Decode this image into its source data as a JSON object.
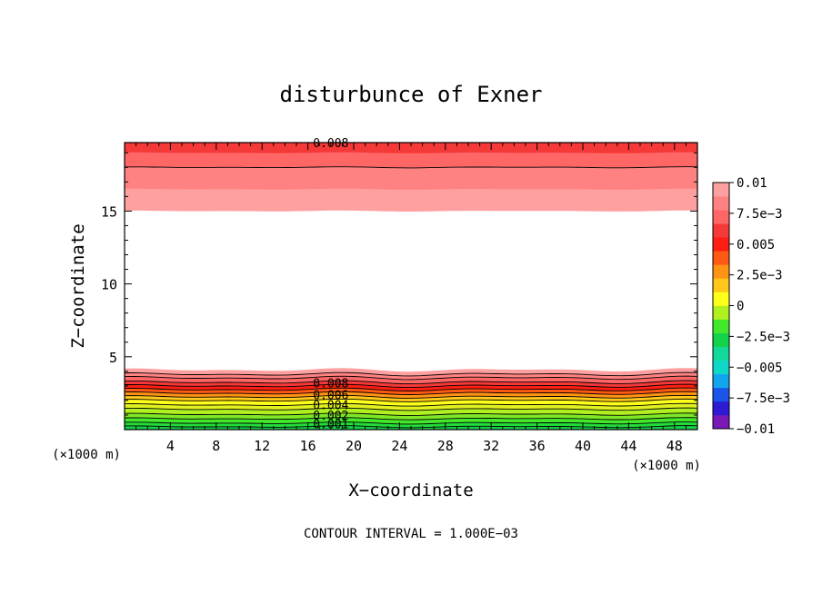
{
  "chart_data": {
    "type": "contour",
    "title": "disturbunce of Exner",
    "xlabel": "X−coordinate",
    "ylabel": "Z−coordinate",
    "x_unit_left": "(×1000 m)",
    "x_unit_right": "(×1000 m)",
    "footer": "CONTOUR INTERVAL = 1.000E−03",
    "xlim": [
      0,
      50
    ],
    "ylim": [
      0,
      19.7
    ],
    "x_ticks": [
      4,
      8,
      12,
      16,
      20,
      24,
      28,
      32,
      36,
      40,
      44,
      48
    ],
    "x_tick_labels": [
      "4",
      "8",
      "12",
      "16",
      "20",
      "24",
      "28",
      "32",
      "36",
      "40",
      "44",
      "48"
    ],
    "y_ticks": [
      5,
      10,
      15
    ],
    "y_tick_labels": [
      "5",
      "10",
      "15"
    ],
    "contour_labels": [
      {
        "text": "0.008",
        "x": 18,
        "y": 19.7
      },
      {
        "text": "0.008",
        "x": 18,
        "y": 3.2
      },
      {
        "text": "0.006",
        "x": 18,
        "y": 2.4
      },
      {
        "text": "0.004",
        "x": 18,
        "y": 1.7
      },
      {
        "text": "0.002",
        "x": 18,
        "y": 1.0
      },
      {
        "text": "0.001",
        "x": 18,
        "y": 0.4
      }
    ],
    "colorbar": {
      "levels": [
        -0.01,
        -0.0075,
        -0.005,
        -0.0025,
        0,
        0.0025,
        0.005,
        0.0075,
        0.01
      ],
      "labels": [
        "0.01",
        "7.5e−3",
        "0.005",
        "2.5e−3",
        "0",
        "−2.5e−3",
        "−0.005",
        "−7.5e−3",
        "−0.01"
      ],
      "colors": [
        "#7a19b8",
        "#2e1ad2",
        "#1a55e8",
        "#12a5ee",
        "#10d8c8",
        "#12d89a",
        "#14d24a",
        "#44e82a",
        "#b0f020",
        "#ffff1c",
        "#ffc81a",
        "#ff9414",
        "#ff5a14",
        "#ff1e14",
        "#f53838",
        "#ff6666",
        "#ff8282",
        "#ffa0a0"
      ]
    },
    "bands_upper": [
      {
        "level": 0.009,
        "z_bottom": 15.0,
        "color": "#ffa0a0"
      },
      {
        "level": 0.0095,
        "z_bottom": 16.5,
        "color": "#ff8282"
      },
      {
        "level": 0.01,
        "z_bottom": 18.0,
        "color": "#ff6666"
      },
      {
        "level": 0.0105,
        "z_bottom": 19.0,
        "color": "#f53838"
      }
    ],
    "bands_lower": [
      {
        "level": 0.009,
        "z_top": 4.1,
        "color": "#ffa0a0"
      },
      {
        "level": 0.0085,
        "z_top": 3.8,
        "color": "#ff8282"
      },
      {
        "level": 0.008,
        "z_top": 3.55,
        "color": "#ff6666"
      },
      {
        "level": 0.0075,
        "z_top": 3.25,
        "color": "#f53838"
      },
      {
        "level": 0.007,
        "z_top": 3.0,
        "color": "#ff1e14"
      },
      {
        "level": 0.0065,
        "z_top": 2.75,
        "color": "#ff5a14"
      },
      {
        "level": 0.006,
        "z_top": 2.5,
        "color": "#ff9414"
      },
      {
        "level": 0.0055,
        "z_top": 2.25,
        "color": "#ffc81a"
      },
      {
        "level": 0.005,
        "z_top": 2.0,
        "color": "#ffff1c"
      },
      {
        "level": 0.004,
        "z_top": 1.7,
        "color": "#e0f020"
      },
      {
        "level": 0.003,
        "z_top": 1.4,
        "color": "#b0f020"
      },
      {
        "level": 0.002,
        "z_top": 1.05,
        "color": "#7ee826"
      },
      {
        "level": 0.0015,
        "z_top": 0.75,
        "color": "#44e82a"
      },
      {
        "level": 0.001,
        "z_top": 0.45,
        "color": "#22dc3a"
      },
      {
        "level": 0.0005,
        "z_top": 0.2,
        "color": "#14d24a"
      }
    ]
  }
}
